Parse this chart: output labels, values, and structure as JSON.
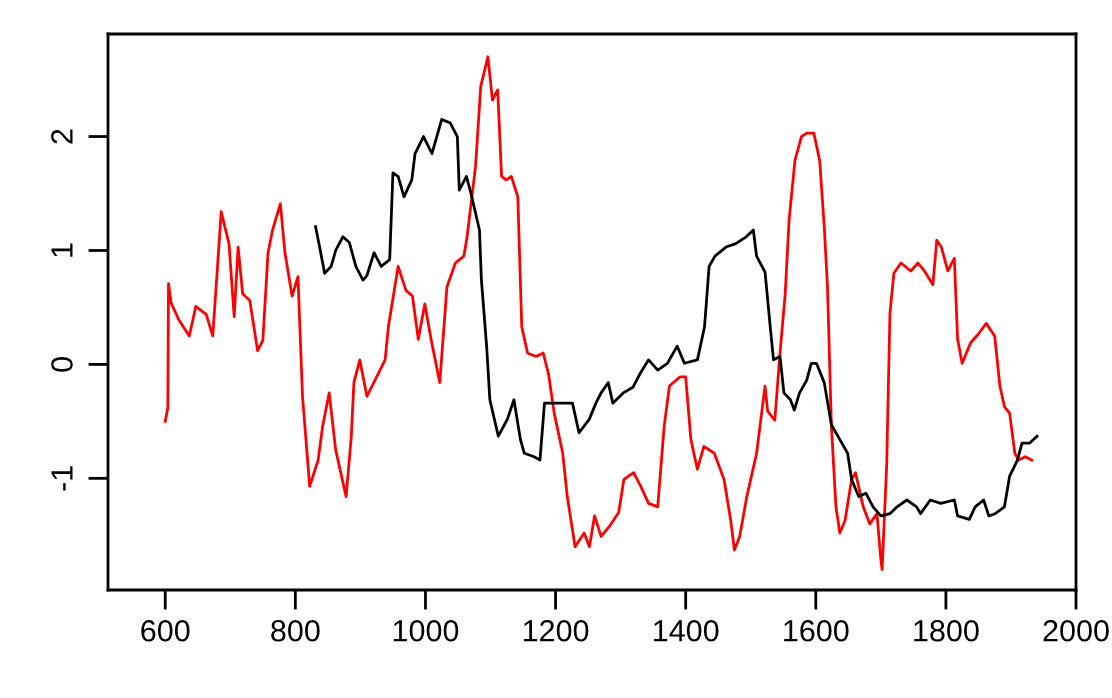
{
  "chart_data": {
    "type": "line",
    "xlim": [
      512,
      2000
    ],
    "ylim": [
      -1.98,
      2.9
    ],
    "xticks": [
      600,
      800,
      1000,
      1200,
      1400,
      1600,
      1800,
      2000
    ],
    "yticks": [
      -1,
      0,
      1,
      2
    ],
    "grid": false,
    "marker": "none",
    "line_style": "solid",
    "series": [
      {
        "color": "#ff0000",
        "x": [
          600,
          604,
          605,
          609,
          621,
          637,
          647,
          663,
          673,
          680,
          686,
          698,
          706,
          712,
          719,
          730,
          742,
          750,
          758,
          765,
          777,
          784,
          795,
          804,
          811,
          822,
          835,
          842,
          852,
          862,
          878,
          886,
          890,
          899,
          910,
          925,
          938,
          943,
          958,
          970,
          980,
          989,
          999,
          1009,
          1022,
          1033,
          1046,
          1059,
          1064,
          1077,
          1085,
          1096,
          1103,
          1111,
          1117,
          1124,
          1132,
          1142,
          1148,
          1157,
          1170,
          1181,
          1189,
          1198,
          1211,
          1218,
          1230,
          1244,
          1252,
          1260,
          1270,
          1283,
          1297,
          1305,
          1320,
          1331,
          1343,
          1357,
          1367,
          1375,
          1391,
          1400,
          1408,
          1418,
          1428,
          1444,
          1459,
          1469,
          1475,
          1483,
          1494,
          1509,
          1522,
          1526,
          1537,
          1545,
          1553,
          1559,
          1568,
          1578,
          1586,
          1597,
          1606,
          1613,
          1618,
          1624,
          1631,
          1637,
          1645,
          1655,
          1661,
          1673,
          1683,
          1694,
          1700,
          1702,
          1709,
          1714,
          1720,
          1731,
          1746,
          1757,
          1767,
          1780,
          1786,
          1793,
          1803,
          1813,
          1818,
          1825,
          1838,
          1849,
          1862,
          1875,
          1883,
          1890,
          1898,
          1906,
          1912,
          1922,
          1932
        ],
        "values": [
          -0.5,
          -0.38,
          0.71,
          0.54,
          0.39,
          0.25,
          0.51,
          0.44,
          0.25,
          0.83,
          1.34,
          1.06,
          0.42,
          1.03,
          0.62,
          0.56,
          0.12,
          0.21,
          0.98,
          1.18,
          1.41,
          0.98,
          0.6,
          0.77,
          -0.28,
          -1.07,
          -0.84,
          -0.54,
          -0.25,
          -0.75,
          -1.16,
          -0.63,
          -0.16,
          0.04,
          -0.28,
          -0.11,
          0.04,
          0.33,
          0.86,
          0.65,
          0.6,
          0.22,
          0.53,
          0.21,
          -0.16,
          0.68,
          0.89,
          0.95,
          1.12,
          1.74,
          2.44,
          2.7,
          2.32,
          2.41,
          1.65,
          1.62,
          1.65,
          1.47,
          0.33,
          0.1,
          0.07,
          0.1,
          -0.08,
          -0.43,
          -0.78,
          -1.16,
          -1.6,
          -1.48,
          -1.6,
          -1.33,
          -1.51,
          -1.42,
          -1.3,
          -1.01,
          -0.95,
          -1.07,
          -1.22,
          -1.25,
          -0.54,
          -0.19,
          -0.11,
          -0.11,
          -0.66,
          -0.92,
          -0.72,
          -0.78,
          -1.01,
          -1.36,
          -1.63,
          -1.51,
          -1.16,
          -0.78,
          -0.19,
          -0.41,
          -0.49,
          0.1,
          0.62,
          1.27,
          1.79,
          2.0,
          2.03,
          2.03,
          1.79,
          1.21,
          0.68,
          -0.54,
          -1.25,
          -1.48,
          -1.37,
          -1.01,
          -0.95,
          -1.25,
          -1.4,
          -1.31,
          -1.71,
          -1.8,
          -0.88,
          0.45,
          0.8,
          0.89,
          0.82,
          0.89,
          0.82,
          0.7,
          1.09,
          1.03,
          0.82,
          0.93,
          0.22,
          0.01,
          0.19,
          0.26,
          0.36,
          0.25,
          -0.19,
          -0.37,
          -0.43,
          -0.78,
          -0.84,
          -0.81,
          -0.84
        ]
      },
      {
        "color": "#000000",
        "x": [
          831,
          837,
          845,
          855,
          862,
          873,
          883,
          893,
          904,
          910,
          921,
          932,
          945,
          950,
          958,
          967,
          979,
          984,
          997,
          1010,
          1025,
          1038,
          1049,
          1052,
          1063,
          1070,
          1083,
          1086,
          1094,
          1099,
          1112,
          1126,
          1136,
          1146,
          1152,
          1167,
          1176,
          1183,
          1199,
          1215,
          1226,
          1236,
          1252,
          1262,
          1270,
          1281,
          1288,
          1304,
          1319,
          1330,
          1343,
          1357,
          1372,
          1387,
          1398,
          1418,
          1429,
          1436,
          1445,
          1462,
          1477,
          1493,
          1504,
          1509,
          1522,
          1530,
          1535,
          1545,
          1551,
          1561,
          1567,
          1575,
          1586,
          1593,
          1601,
          1613,
          1624,
          1637,
          1649,
          1655,
          1666,
          1677,
          1688,
          1700,
          1714,
          1725,
          1740,
          1755,
          1761,
          1776,
          1792,
          1813,
          1818,
          1836,
          1845,
          1858,
          1866,
          1876,
          1890,
          1898,
          1910,
          1917,
          1929,
          1940
        ],
        "values": [
          1.21,
          1.04,
          0.8,
          0.86,
          1.0,
          1.12,
          1.07,
          0.86,
          0.74,
          0.78,
          0.98,
          0.86,
          0.92,
          1.68,
          1.65,
          1.47,
          1.62,
          1.85,
          2.0,
          1.85,
          2.15,
          2.12,
          2.0,
          1.53,
          1.65,
          1.5,
          1.18,
          0.74,
          0.16,
          -0.31,
          -0.63,
          -0.48,
          -0.31,
          -0.66,
          -0.78,
          -0.81,
          -0.84,
          -0.34,
          -0.34,
          -0.34,
          -0.34,
          -0.6,
          -0.48,
          -0.34,
          -0.25,
          -0.16,
          -0.34,
          -0.25,
          -0.2,
          -0.08,
          0.04,
          -0.05,
          0.01,
          0.16,
          0.01,
          0.04,
          0.33,
          0.86,
          0.95,
          1.03,
          1.06,
          1.12,
          1.18,
          0.95,
          0.81,
          0.33,
          0.04,
          0.07,
          -0.25,
          -0.31,
          -0.4,
          -0.25,
          -0.14,
          0.01,
          0.01,
          -0.16,
          -0.53,
          -0.66,
          -0.78,
          -1.01,
          -1.16,
          -1.13,
          -1.25,
          -1.33,
          -1.31,
          -1.25,
          -1.19,
          -1.25,
          -1.31,
          -1.19,
          -1.22,
          -1.19,
          -1.33,
          -1.36,
          -1.25,
          -1.19,
          -1.33,
          -1.31,
          -1.25,
          -0.98,
          -0.84,
          -0.69,
          -0.69,
          -0.63
        ]
      }
    ]
  }
}
